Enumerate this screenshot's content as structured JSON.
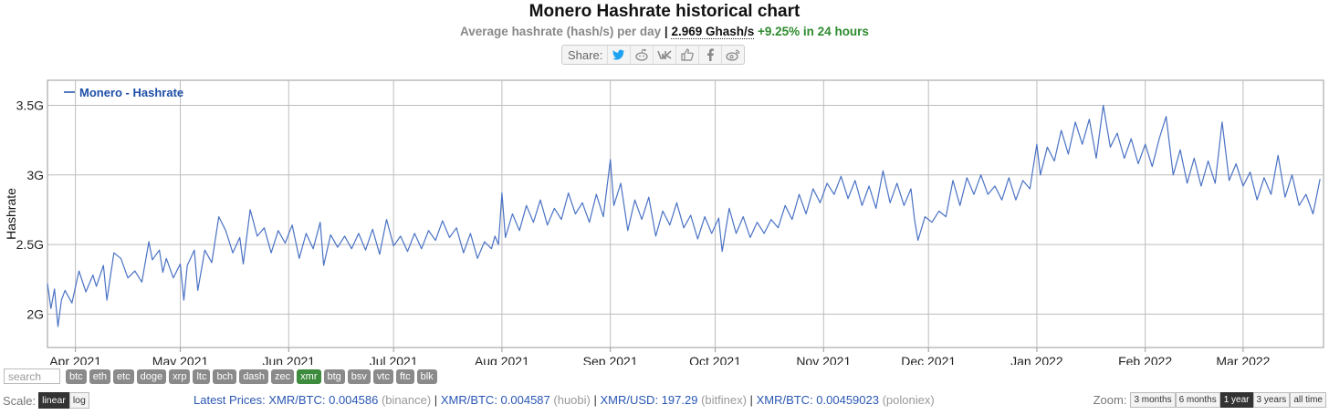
{
  "header": {
    "title": "Monero Hashrate historical chart",
    "subtitle_prefix": "Average hashrate (hash/s) per day",
    "separator": "|",
    "current_rate": "2.969 Ghash/s",
    "change": "+9.25% in 24 hours"
  },
  "share": {
    "label": "Share:",
    "icons": [
      "twitter-icon",
      "reddit-icon",
      "vk-icon",
      "like-icon",
      "facebook-icon",
      "weibo-icon"
    ]
  },
  "search": {
    "placeholder": "search"
  },
  "coin_tags": [
    "btc",
    "eth",
    "etc",
    "doge",
    "xrp",
    "ltc",
    "bch",
    "dash",
    "zec",
    "xmr",
    "btg",
    "bsv",
    "vtc",
    "ftc",
    "blk"
  ],
  "active_coin": "xmr",
  "scale": {
    "label": "Scale:",
    "options": [
      "linear",
      "log"
    ],
    "selected": "linear"
  },
  "prices": {
    "label": "Latest Prices:",
    "items": [
      {
        "pair": "XMR/BTC: 0.004586",
        "exchange": "(binance)"
      },
      {
        "pair": "XMR/BTC: 0.004587",
        "exchange": "(huobi)"
      },
      {
        "pair": "XMR/USD: 197.29",
        "exchange": "(bitfinex)"
      },
      {
        "pair": "XMR/BTC: 0.00459023",
        "exchange": "(poloniex)"
      }
    ]
  },
  "zoom": {
    "label": "Zoom:",
    "options": [
      "3 months",
      "6 months",
      "1 year",
      "3 years",
      "all time"
    ],
    "selected": "1 year"
  },
  "colors": {
    "line": "#4a72c4",
    "legend": "#1f4fa8",
    "active_tag": "#3d8b3d"
  },
  "chart_data": {
    "type": "line",
    "title": "Monero Hashrate historical chart",
    "ylabel": "Hashrate",
    "legend": "Monero - Hashrate",
    "legend_position": "top-left",
    "grid": true,
    "x_start": "2021-03-24",
    "x_end": "2022-03-24",
    "x_ticks": [
      {
        "date": "2021-04-01",
        "label": "Apr 2021"
      },
      {
        "date": "2021-05-01",
        "label": "May 2021"
      },
      {
        "date": "2021-06-01",
        "label": "Jun 2021"
      },
      {
        "date": "2021-07-01",
        "label": "Jul 2021"
      },
      {
        "date": "2021-08-01",
        "label": "Aug 2021"
      },
      {
        "date": "2021-09-01",
        "label": "Sep 2021"
      },
      {
        "date": "2021-10-01",
        "label": "Oct 2021"
      },
      {
        "date": "2021-11-01",
        "label": "Nov 2021"
      },
      {
        "date": "2021-12-01",
        "label": "Dec 2021"
      },
      {
        "date": "2022-01-01",
        "label": "Jan 2022"
      },
      {
        "date": "2022-02-01",
        "label": "Feb 2022"
      },
      {
        "date": "2022-03-01",
        "label": "Mar 2022"
      }
    ],
    "y_ticks": [
      {
        "value": 2.0,
        "label": "2G"
      },
      {
        "value": 2.5,
        "label": "2.5G"
      },
      {
        "value": 3.0,
        "label": "3G"
      },
      {
        "value": 3.5,
        "label": "3.5G"
      }
    ],
    "ylim": [
      1.76,
      3.68
    ],
    "series": [
      {
        "name": "Monero - Hashrate",
        "unit": "Ghash/s",
        "points": [
          [
            "2021-03-24",
            2.22
          ],
          [
            "2021-03-25",
            2.04
          ],
          [
            "2021-03-26",
            2.18
          ],
          [
            "2021-03-27",
            1.91
          ],
          [
            "2021-03-28",
            2.1
          ],
          [
            "2021-03-29",
            2.17
          ],
          [
            "2021-03-31",
            2.08
          ],
          [
            "2021-04-02",
            2.31
          ],
          [
            "2021-04-04",
            2.16
          ],
          [
            "2021-04-06",
            2.28
          ],
          [
            "2021-04-07",
            2.2
          ],
          [
            "2021-04-09",
            2.35
          ],
          [
            "2021-04-10",
            2.1
          ],
          [
            "2021-04-12",
            2.44
          ],
          [
            "2021-04-14",
            2.4
          ],
          [
            "2021-04-16",
            2.26
          ],
          [
            "2021-04-18",
            2.31
          ],
          [
            "2021-04-20",
            2.23
          ],
          [
            "2021-04-22",
            2.52
          ],
          [
            "2021-04-23",
            2.39
          ],
          [
            "2021-04-25",
            2.46
          ],
          [
            "2021-04-26",
            2.3
          ],
          [
            "2021-04-27",
            2.4
          ],
          [
            "2021-04-29",
            2.26
          ],
          [
            "2021-05-01",
            2.36
          ],
          [
            "2021-05-02",
            2.1
          ],
          [
            "2021-05-03",
            2.35
          ],
          [
            "2021-05-05",
            2.46
          ],
          [
            "2021-05-06",
            2.17
          ],
          [
            "2021-05-08",
            2.46
          ],
          [
            "2021-05-10",
            2.37
          ],
          [
            "2021-05-12",
            2.7
          ],
          [
            "2021-05-14",
            2.6
          ],
          [
            "2021-05-16",
            2.44
          ],
          [
            "2021-05-18",
            2.55
          ],
          [
            "2021-05-19",
            2.36
          ],
          [
            "2021-05-21",
            2.75
          ],
          [
            "2021-05-23",
            2.56
          ],
          [
            "2021-05-25",
            2.62
          ],
          [
            "2021-05-27",
            2.44
          ],
          [
            "2021-05-29",
            2.6
          ],
          [
            "2021-05-31",
            2.51
          ],
          [
            "2021-06-02",
            2.64
          ],
          [
            "2021-06-04",
            2.4
          ],
          [
            "2021-06-06",
            2.58
          ],
          [
            "2021-06-08",
            2.47
          ],
          [
            "2021-06-10",
            2.66
          ],
          [
            "2021-06-11",
            2.35
          ],
          [
            "2021-06-13",
            2.57
          ],
          [
            "2021-06-15",
            2.48
          ],
          [
            "2021-06-17",
            2.56
          ],
          [
            "2021-06-19",
            2.47
          ],
          [
            "2021-06-21",
            2.58
          ],
          [
            "2021-06-23",
            2.46
          ],
          [
            "2021-06-25",
            2.61
          ],
          [
            "2021-06-27",
            2.43
          ],
          [
            "2021-06-29",
            2.68
          ],
          [
            "2021-07-01",
            2.49
          ],
          [
            "2021-07-03",
            2.56
          ],
          [
            "2021-07-05",
            2.45
          ],
          [
            "2021-07-07",
            2.58
          ],
          [
            "2021-07-09",
            2.47
          ],
          [
            "2021-07-11",
            2.6
          ],
          [
            "2021-07-13",
            2.53
          ],
          [
            "2021-07-15",
            2.67
          ],
          [
            "2021-07-17",
            2.55
          ],
          [
            "2021-07-19",
            2.62
          ],
          [
            "2021-07-21",
            2.44
          ],
          [
            "2021-07-23",
            2.58
          ],
          [
            "2021-07-25",
            2.4
          ],
          [
            "2021-07-27",
            2.52
          ],
          [
            "2021-07-29",
            2.47
          ],
          [
            "2021-07-30",
            2.56
          ],
          [
            "2021-07-31",
            2.5
          ],
          [
            "2021-08-01",
            2.87
          ],
          [
            "2021-08-02",
            2.55
          ],
          [
            "2021-08-04",
            2.72
          ],
          [
            "2021-08-06",
            2.6
          ],
          [
            "2021-08-08",
            2.78
          ],
          [
            "2021-08-10",
            2.66
          ],
          [
            "2021-08-12",
            2.82
          ],
          [
            "2021-08-14",
            2.64
          ],
          [
            "2021-08-16",
            2.76
          ],
          [
            "2021-08-18",
            2.68
          ],
          [
            "2021-08-20",
            2.87
          ],
          [
            "2021-08-22",
            2.72
          ],
          [
            "2021-08-24",
            2.8
          ],
          [
            "2021-08-26",
            2.66
          ],
          [
            "2021-08-28",
            2.86
          ],
          [
            "2021-08-30",
            2.7
          ],
          [
            "2021-09-01",
            3.11
          ],
          [
            "2021-09-02",
            2.78
          ],
          [
            "2021-09-04",
            2.94
          ],
          [
            "2021-09-06",
            2.6
          ],
          [
            "2021-09-08",
            2.82
          ],
          [
            "2021-09-10",
            2.68
          ],
          [
            "2021-09-12",
            2.84
          ],
          [
            "2021-09-14",
            2.56
          ],
          [
            "2021-09-16",
            2.74
          ],
          [
            "2021-09-18",
            2.64
          ],
          [
            "2021-09-20",
            2.8
          ],
          [
            "2021-09-22",
            2.62
          ],
          [
            "2021-09-24",
            2.71
          ],
          [
            "2021-09-26",
            2.54
          ],
          [
            "2021-09-28",
            2.7
          ],
          [
            "2021-09-30",
            2.58
          ],
          [
            "2021-10-02",
            2.69
          ],
          [
            "2021-10-03",
            2.45
          ],
          [
            "2021-10-05",
            2.76
          ],
          [
            "2021-10-07",
            2.58
          ],
          [
            "2021-10-09",
            2.7
          ],
          [
            "2021-10-11",
            2.55
          ],
          [
            "2021-10-13",
            2.66
          ],
          [
            "2021-10-15",
            2.58
          ],
          [
            "2021-10-17",
            2.68
          ],
          [
            "2021-10-19",
            2.62
          ],
          [
            "2021-10-21",
            2.78
          ],
          [
            "2021-10-23",
            2.68
          ],
          [
            "2021-10-25",
            2.86
          ],
          [
            "2021-10-27",
            2.72
          ],
          [
            "2021-10-29",
            2.9
          ],
          [
            "2021-10-31",
            2.8
          ],
          [
            "2021-11-02",
            2.94
          ],
          [
            "2021-11-04",
            2.86
          ],
          [
            "2021-11-06",
            2.99
          ],
          [
            "2021-11-08",
            2.83
          ],
          [
            "2021-11-10",
            2.96
          ],
          [
            "2021-11-12",
            2.78
          ],
          [
            "2021-11-14",
            2.92
          ],
          [
            "2021-11-16",
            2.76
          ],
          [
            "2021-11-18",
            3.03
          ],
          [
            "2021-11-20",
            2.8
          ],
          [
            "2021-11-22",
            2.94
          ],
          [
            "2021-11-24",
            2.78
          ],
          [
            "2021-11-26",
            2.9
          ],
          [
            "2021-11-27",
            2.68
          ],
          [
            "2021-11-28",
            2.53
          ],
          [
            "2021-11-30",
            2.7
          ],
          [
            "2021-12-02",
            2.66
          ],
          [
            "2021-12-04",
            2.74
          ],
          [
            "2021-12-06",
            2.7
          ],
          [
            "2021-12-08",
            2.96
          ],
          [
            "2021-12-10",
            2.78
          ],
          [
            "2021-12-12",
            2.98
          ],
          [
            "2021-12-14",
            2.86
          ],
          [
            "2021-12-16",
            3.0
          ],
          [
            "2021-12-18",
            2.86
          ],
          [
            "2021-12-20",
            2.92
          ],
          [
            "2021-12-22",
            2.82
          ],
          [
            "2021-12-24",
            2.98
          ],
          [
            "2021-12-26",
            2.82
          ],
          [
            "2021-12-28",
            2.96
          ],
          [
            "2021-12-30",
            2.9
          ],
          [
            "2022-01-01",
            3.22
          ],
          [
            "2022-01-02",
            3.0
          ],
          [
            "2022-01-04",
            3.2
          ],
          [
            "2022-01-06",
            3.1
          ],
          [
            "2022-01-08",
            3.32
          ],
          [
            "2022-01-10",
            3.15
          ],
          [
            "2022-01-12",
            3.38
          ],
          [
            "2022-01-14",
            3.22
          ],
          [
            "2022-01-16",
            3.4
          ],
          [
            "2022-01-18",
            3.12
          ],
          [
            "2022-01-20",
            3.5
          ],
          [
            "2022-01-22",
            3.2
          ],
          [
            "2022-01-24",
            3.3
          ],
          [
            "2022-01-26",
            3.12
          ],
          [
            "2022-01-28",
            3.26
          ],
          [
            "2022-01-30",
            3.08
          ],
          [
            "2022-02-01",
            3.22
          ],
          [
            "2022-02-03",
            3.06
          ],
          [
            "2022-02-05",
            3.26
          ],
          [
            "2022-02-07",
            3.42
          ],
          [
            "2022-02-09",
            3.0
          ],
          [
            "2022-02-11",
            3.18
          ],
          [
            "2022-02-13",
            2.94
          ],
          [
            "2022-02-15",
            3.12
          ],
          [
            "2022-02-17",
            2.92
          ],
          [
            "2022-02-19",
            3.1
          ],
          [
            "2022-02-21",
            2.94
          ],
          [
            "2022-02-23",
            3.38
          ],
          [
            "2022-02-25",
            2.96
          ],
          [
            "2022-02-27",
            3.08
          ],
          [
            "2022-03-01",
            2.92
          ],
          [
            "2022-03-03",
            3.02
          ],
          [
            "2022-03-05",
            2.82
          ],
          [
            "2022-03-07",
            2.98
          ],
          [
            "2022-03-09",
            2.86
          ],
          [
            "2022-03-11",
            3.14
          ],
          [
            "2022-03-13",
            2.84
          ],
          [
            "2022-03-15",
            3.0
          ],
          [
            "2022-03-17",
            2.78
          ],
          [
            "2022-03-19",
            2.86
          ],
          [
            "2022-03-21",
            2.72
          ],
          [
            "2022-03-23",
            2.97
          ]
        ]
      }
    ]
  }
}
